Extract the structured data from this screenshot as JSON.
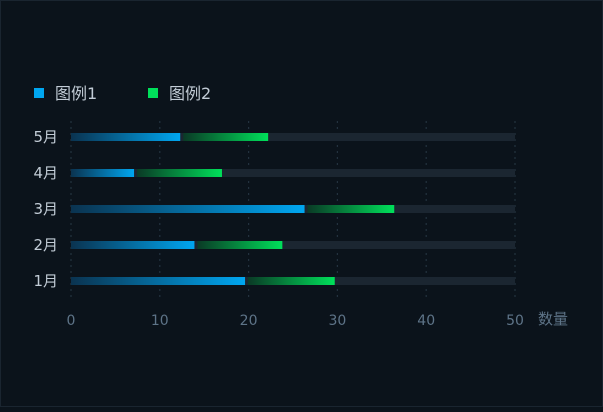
{
  "chart_data": {
    "type": "bar",
    "orientation": "horizontal",
    "stacked": true,
    "categories": [
      "1月",
      "2月",
      "3月",
      "4月",
      "5月"
    ],
    "series": [
      {
        "name": "图例1",
        "values": [
          19.6,
          13.9,
          26.3,
          7.1,
          12.3
        ]
      },
      {
        "name": "图例2",
        "values": [
          10.1,
          9.9,
          10.1,
          9.9,
          9.9
        ]
      }
    ],
    "xlim": [
      0,
      50
    ],
    "xticks": [
      "0",
      "10",
      "20",
      "30",
      "40",
      "50"
    ],
    "xlabel": "数量",
    "grid": "vertical-dotted",
    "legend_position": "top-left",
    "colors": {
      "series1": "#00a6f0",
      "series2": "#00e05a",
      "track": "#1b2631",
      "axis_label": "#5e7488",
      "category_label": "#c2ccd6",
      "legend_text": "#c2ccd6",
      "grid": "#23323f"
    }
  }
}
